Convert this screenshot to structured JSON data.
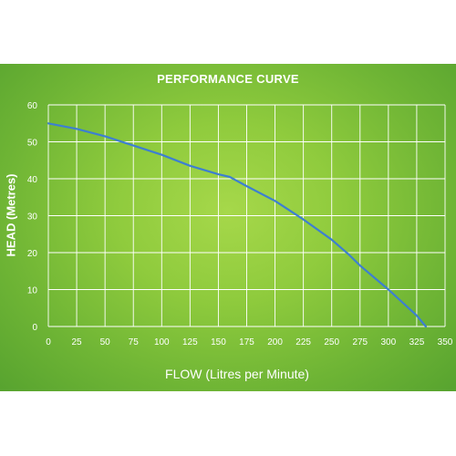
{
  "chart_data": {
    "type": "line",
    "title": "PERFORMANCE CURVE",
    "xlabel": "FLOW (Litres per Minute)",
    "ylabel": "HEAD (Metres)",
    "xlim": [
      0,
      350
    ],
    "ylim": [
      0,
      60
    ],
    "xticks": [
      0,
      25,
      50,
      75,
      100,
      125,
      150,
      175,
      200,
      225,
      250,
      275,
      300,
      325,
      350
    ],
    "yticks": [
      0,
      10,
      20,
      30,
      40,
      50,
      60
    ],
    "grid": true,
    "series": [
      {
        "color": "#3d7fd1",
        "x": [
          0,
          25,
          50,
          75,
          100,
          125,
          150,
          160,
          175,
          200,
          225,
          250,
          265,
          275,
          300,
          325,
          333
        ],
        "y": [
          55,
          53.5,
          51.5,
          49,
          46.5,
          43.5,
          41.2,
          40.5,
          38,
          34,
          29,
          23.5,
          19.5,
          16.5,
          10,
          3,
          0
        ]
      }
    ]
  }
}
